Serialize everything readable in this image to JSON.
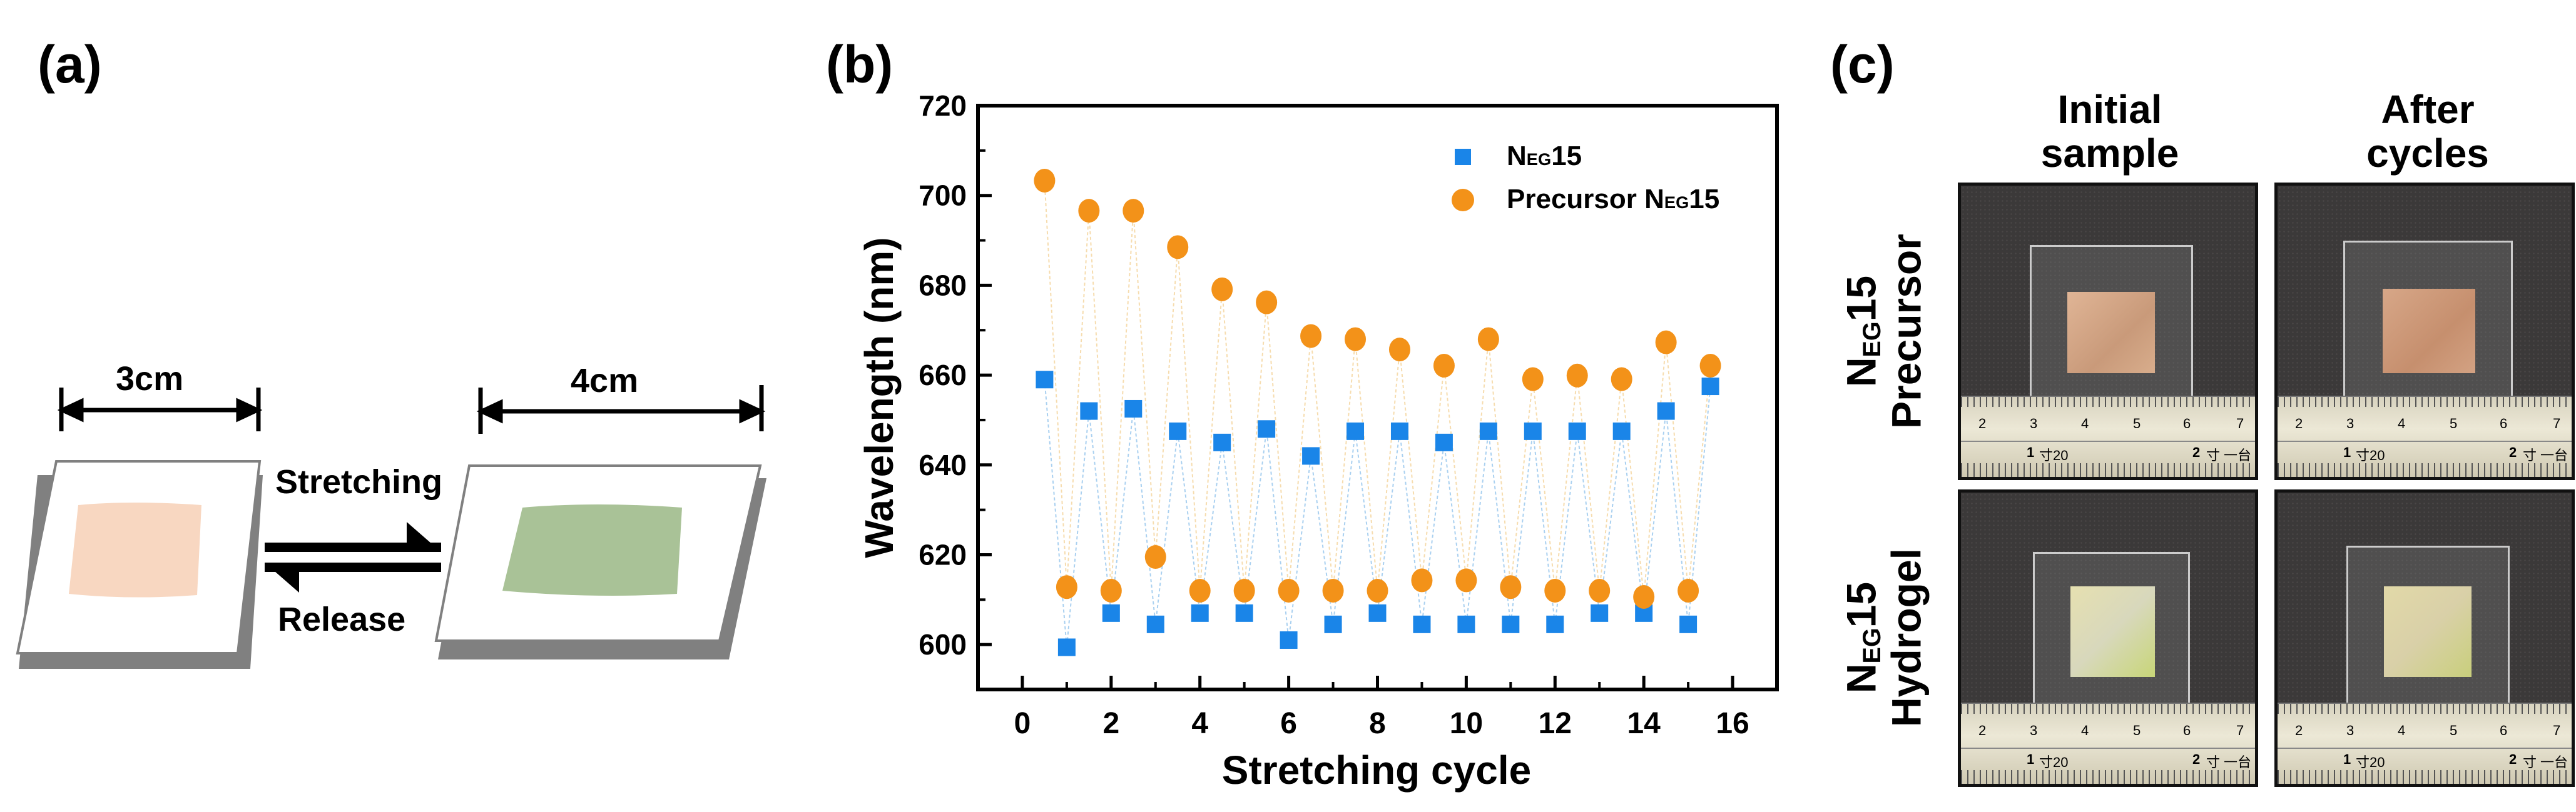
{
  "panels": {
    "a": {
      "label": "(a)",
      "left_dimension": "3cm",
      "right_dimension": "4cm",
      "forward_label": "Stretching",
      "reverse_label": "Release",
      "colors": {
        "initial_film": "#f8d7c1",
        "stretched_film": "#a9c297",
        "plate_edge": "#808080"
      }
    },
    "b": {
      "label": "(b)"
    },
    "c": {
      "label": "(c)",
      "column_titles": [
        [
          "Initial",
          "sample"
        ],
        [
          "After",
          "cycles"
        ]
      ],
      "row_labels": [
        {
          "base": "N",
          "sub": "EG",
          "num": "15",
          "name": "Precursor"
        },
        {
          "base": "N",
          "sub": "EG",
          "num": "15",
          "name": "Hydrogel"
        }
      ],
      "ruler": {
        "numbers": [
          "2",
          "3",
          "4",
          "5",
          "6",
          "7"
        ],
        "sun_1": "1",
        "sun_1_text": "寸20",
        "sun_2": "2",
        "sun_2_text": "寸",
        "tail": "一台"
      }
    }
  },
  "chart_data": {
    "type": "scatter",
    "title": "",
    "xlabel": "Stretching cycle",
    "ylabel": "Wavelength (nm)",
    "xlim": [
      -1,
      17
    ],
    "ylim": [
      590,
      720
    ],
    "xticks": [
      0,
      2,
      4,
      6,
      8,
      10,
      12,
      14,
      16
    ],
    "yticks": [
      600,
      620,
      640,
      660,
      680,
      700,
      720
    ],
    "grid": false,
    "legend_position": "top-right",
    "x": [
      0.5,
      1,
      1.5,
      2,
      2.5,
      3,
      3.5,
      4,
      4.5,
      5,
      5.5,
      6,
      6.5,
      7,
      7.5,
      8,
      8.5,
      9,
      9.5,
      10,
      10.5,
      11,
      11.5,
      12,
      12.5,
      13,
      13.5,
      14,
      14.5,
      15,
      15.5
    ],
    "series": [
      {
        "name": "NEG15",
        "name_base": "N",
        "name_sub": "EG",
        "name_num": "15",
        "marker": "square",
        "color": "#1a85e8",
        "line_color": "#a9d0f0",
        "values": [
          659,
          599.4,
          652,
          607,
          652.5,
          604.5,
          647.5,
          607,
          645,
          607,
          648,
          601,
          642,
          604.5,
          647.5,
          607,
          647.5,
          604.5,
          645,
          604.5,
          647.5,
          604.5,
          647.5,
          604.5,
          647.5,
          607,
          647.5,
          607,
          652,
          604.5,
          657.5
        ]
      },
      {
        "name": "Precursor NEG15",
        "name_prefix": "Precursor ",
        "name_base": "N",
        "name_sub": "EG",
        "name_num": "15",
        "marker": "circle",
        "color": "#f39219",
        "line_color": "#f6dcae",
        "values": [
          703.3,
          612.8,
          696.6,
          612,
          696.6,
          619.5,
          688.5,
          612,
          679.1,
          612,
          676.2,
          612,
          668.7,
          612,
          668,
          612,
          665.7,
          614.3,
          662.1,
          614.3,
          668,
          612.8,
          659.1,
          612,
          659.9,
          612,
          659.1,
          610.6,
          667.3,
          612,
          662.1
        ]
      }
    ]
  }
}
